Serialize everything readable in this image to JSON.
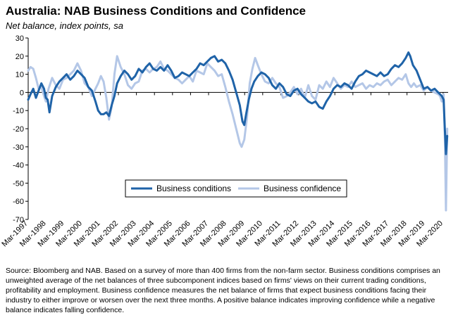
{
  "chart_data": {
    "type": "line",
    "title": "Australia: NAB Business Conditions and Confidence",
    "subtitle": "Net balance, index points, sa",
    "xlabel": "",
    "ylabel": "",
    "ylim": [
      -70,
      30
    ],
    "yticks": [
      30,
      20,
      10,
      0,
      -10,
      -20,
      -30,
      -40,
      -50,
      -60,
      -70
    ],
    "x_start": 1997.17,
    "x_end": 2020.45,
    "xtick_labels": [
      "Mar-1997",
      "Mar-1998",
      "Mar-1999",
      "Mar-2000",
      "Mar-2001",
      "Mar-2002",
      "Mar-2003",
      "Mar-2004",
      "Mar-2005",
      "Mar-2006",
      "Mar-2007",
      "Mar-2008",
      "Mar-2009",
      "Mar-2010",
      "Mar-2011",
      "Mar-2012",
      "Mar-2013",
      "Mar-2014",
      "Mar-2015",
      "Mar-2016",
      "Mar-2017",
      "Mar-2018",
      "Mar-2019",
      "Mar-2020"
    ],
    "xtick_years": [
      1997.17,
      1998.17,
      1999.17,
      2000.17,
      2001.17,
      2002.17,
      2003.17,
      2004.17,
      2005.17,
      2006.17,
      2007.17,
      2008.17,
      2009.17,
      2010.17,
      2011.17,
      2012.17,
      2013.17,
      2014.17,
      2015.17,
      2016.17,
      2017.17,
      2018.17,
      2019.17,
      2020.17
    ],
    "legend_position": "lower-center",
    "series": [
      {
        "name": "Business conditions",
        "color": "#1f63a8",
        "points": [
          [
            1997.17,
            -4
          ],
          [
            1997.3,
            -1
          ],
          [
            1997.45,
            2
          ],
          [
            1997.6,
            -3
          ],
          [
            1997.75,
            1
          ],
          [
            1997.9,
            5
          ],
          [
            1998.05,
            2
          ],
          [
            1998.15,
            -3
          ],
          [
            1998.25,
            -4
          ],
          [
            1998.35,
            -11
          ],
          [
            1998.5,
            -2
          ],
          [
            1998.7,
            3
          ],
          [
            1998.9,
            6
          ],
          [
            1999.1,
            8
          ],
          [
            1999.3,
            10
          ],
          [
            1999.5,
            7
          ],
          [
            1999.7,
            9
          ],
          [
            1999.9,
            12
          ],
          [
            2000.1,
            10
          ],
          [
            2000.3,
            8
          ],
          [
            2000.5,
            3
          ],
          [
            2000.7,
            1
          ],
          [
            2000.9,
            -5
          ],
          [
            2001.05,
            -10
          ],
          [
            2001.2,
            -12
          ],
          [
            2001.35,
            -12
          ],
          [
            2001.5,
            -11
          ],
          [
            2001.65,
            -13
          ],
          [
            2001.8,
            -7
          ],
          [
            2001.95,
            -2
          ],
          [
            2002.1,
            5
          ],
          [
            2002.3,
            9
          ],
          [
            2002.5,
            12
          ],
          [
            2002.7,
            10
          ],
          [
            2002.9,
            7
          ],
          [
            2003.1,
            9
          ],
          [
            2003.3,
            13
          ],
          [
            2003.5,
            11
          ],
          [
            2003.7,
            14
          ],
          [
            2003.9,
            16
          ],
          [
            2004.1,
            13
          ],
          [
            2004.3,
            12
          ],
          [
            2004.5,
            14
          ],
          [
            2004.7,
            12
          ],
          [
            2004.9,
            15
          ],
          [
            2005.1,
            12
          ],
          [
            2005.3,
            8
          ],
          [
            2005.5,
            9
          ],
          [
            2005.7,
            11
          ],
          [
            2005.9,
            10
          ],
          [
            2006.1,
            9
          ],
          [
            2006.3,
            11
          ],
          [
            2006.5,
            13
          ],
          [
            2006.7,
            16
          ],
          [
            2006.9,
            15
          ],
          [
            2007.1,
            17
          ],
          [
            2007.3,
            19
          ],
          [
            2007.5,
            20
          ],
          [
            2007.7,
            17
          ],
          [
            2007.9,
            18
          ],
          [
            2008.1,
            16
          ],
          [
            2008.3,
            12
          ],
          [
            2008.5,
            7
          ],
          [
            2008.7,
            0
          ],
          [
            2008.9,
            -7
          ],
          [
            2009.05,
            -16
          ],
          [
            2009.15,
            -18
          ],
          [
            2009.25,
            -12
          ],
          [
            2009.4,
            -4
          ],
          [
            2009.55,
            2
          ],
          [
            2009.7,
            6
          ],
          [
            2009.9,
            9
          ],
          [
            2010.1,
            11
          ],
          [
            2010.3,
            10
          ],
          [
            2010.5,
            8
          ],
          [
            2010.7,
            4
          ],
          [
            2010.9,
            2
          ],
          [
            2011.1,
            5
          ],
          [
            2011.3,
            3
          ],
          [
            2011.5,
            -1
          ],
          [
            2011.7,
            -2
          ],
          [
            2011.9,
            1
          ],
          [
            2012.1,
            2
          ],
          [
            2012.3,
            -1
          ],
          [
            2012.5,
            -3
          ],
          [
            2012.7,
            -5
          ],
          [
            2012.9,
            -6
          ],
          [
            2013.1,
            -5
          ],
          [
            2013.3,
            -8
          ],
          [
            2013.5,
            -9
          ],
          [
            2013.7,
            -5
          ],
          [
            2013.9,
            -2
          ],
          [
            2014.1,
            2
          ],
          [
            2014.3,
            4
          ],
          [
            2014.5,
            3
          ],
          [
            2014.7,
            5
          ],
          [
            2014.9,
            4
          ],
          [
            2015.1,
            2
          ],
          [
            2015.3,
            6
          ],
          [
            2015.5,
            9
          ],
          [
            2015.7,
            10
          ],
          [
            2015.9,
            12
          ],
          [
            2016.1,
            11
          ],
          [
            2016.3,
            10
          ],
          [
            2016.5,
            9
          ],
          [
            2016.7,
            11
          ],
          [
            2016.9,
            9
          ],
          [
            2017.1,
            10
          ],
          [
            2017.3,
            13
          ],
          [
            2017.5,
            15
          ],
          [
            2017.7,
            14
          ],
          [
            2017.9,
            16
          ],
          [
            2018.1,
            19
          ],
          [
            2018.25,
            22
          ],
          [
            2018.35,
            20
          ],
          [
            2018.5,
            15
          ],
          [
            2018.7,
            12
          ],
          [
            2018.9,
            7
          ],
          [
            2019.1,
            2
          ],
          [
            2019.3,
            3
          ],
          [
            2019.5,
            1
          ],
          [
            2019.7,
            2
          ],
          [
            2019.9,
            0
          ],
          [
            2020.0,
            -1
          ],
          [
            2020.1,
            -2
          ],
          [
            2020.2,
            -4
          ],
          [
            2020.27,
            -21
          ],
          [
            2020.33,
            -34
          ],
          [
            2020.4,
            -24
          ]
        ]
      },
      {
        "name": "Business confidence",
        "color": "#b4c7e7",
        "points": [
          [
            1997.17,
            12
          ],
          [
            1997.3,
            14
          ],
          [
            1997.45,
            13
          ],
          [
            1997.6,
            8
          ],
          [
            1997.75,
            2
          ],
          [
            1997.9,
            3
          ],
          [
            1998.05,
            -2
          ],
          [
            1998.15,
            -5
          ],
          [
            1998.3,
            2
          ],
          [
            1998.5,
            8
          ],
          [
            1998.7,
            4
          ],
          [
            1998.9,
            2
          ],
          [
            1999.1,
            7
          ],
          [
            1999.3,
            8
          ],
          [
            1999.5,
            10
          ],
          [
            1999.7,
            12
          ],
          [
            1999.9,
            16
          ],
          [
            2000.1,
            12
          ],
          [
            2000.3,
            5
          ],
          [
            2000.5,
            3
          ],
          [
            2000.7,
            -2
          ],
          [
            2000.9,
            2
          ],
          [
            2001.05,
            5
          ],
          [
            2001.2,
            9
          ],
          [
            2001.35,
            6
          ],
          [
            2001.5,
            -3
          ],
          [
            2001.65,
            -15
          ],
          [
            2001.8,
            -8
          ],
          [
            2001.95,
            10
          ],
          [
            2002.1,
            20
          ],
          [
            2002.3,
            14
          ],
          [
            2002.5,
            10
          ],
          [
            2002.7,
            4
          ],
          [
            2002.9,
            2
          ],
          [
            2003.1,
            5
          ],
          [
            2003.3,
            6
          ],
          [
            2003.5,
            12
          ],
          [
            2003.7,
            13
          ],
          [
            2003.9,
            11
          ],
          [
            2004.1,
            13
          ],
          [
            2004.3,
            14
          ],
          [
            2004.5,
            17
          ],
          [
            2004.7,
            13
          ],
          [
            2004.9,
            12
          ],
          [
            2005.1,
            10
          ],
          [
            2005.3,
            8
          ],
          [
            2005.5,
            7
          ],
          [
            2005.7,
            5
          ],
          [
            2005.9,
            7
          ],
          [
            2006.1,
            9
          ],
          [
            2006.3,
            6
          ],
          [
            2006.5,
            12
          ],
          [
            2006.7,
            11
          ],
          [
            2006.9,
            10
          ],
          [
            2007.1,
            16
          ],
          [
            2007.3,
            14
          ],
          [
            2007.5,
            12
          ],
          [
            2007.7,
            9
          ],
          [
            2007.9,
            10
          ],
          [
            2008.1,
            3
          ],
          [
            2008.3,
            -5
          ],
          [
            2008.5,
            -12
          ],
          [
            2008.7,
            -20
          ],
          [
            2008.9,
            -28
          ],
          [
            2009.0,
            -30
          ],
          [
            2009.15,
            -26
          ],
          [
            2009.3,
            -14
          ],
          [
            2009.45,
            5
          ],
          [
            2009.6,
            13
          ],
          [
            2009.75,
            19
          ],
          [
            2009.9,
            15
          ],
          [
            2010.1,
            10
          ],
          [
            2010.3,
            6
          ],
          [
            2010.5,
            5
          ],
          [
            2010.7,
            8
          ],
          [
            2010.9,
            5
          ],
          [
            2011.1,
            3
          ],
          [
            2011.3,
            -3
          ],
          [
            2011.5,
            -2
          ],
          [
            2011.7,
            0
          ],
          [
            2011.9,
            3
          ],
          [
            2012.1,
            -1
          ],
          [
            2012.3,
            2
          ],
          [
            2012.5,
            -3
          ],
          [
            2012.7,
            4
          ],
          [
            2012.9,
            -2
          ],
          [
            2013.1,
            -4
          ],
          [
            2013.3,
            4
          ],
          [
            2013.5,
            2
          ],
          [
            2013.7,
            6
          ],
          [
            2013.9,
            3
          ],
          [
            2014.1,
            8
          ],
          [
            2014.3,
            5
          ],
          [
            2014.5,
            2
          ],
          [
            2014.7,
            4
          ],
          [
            2014.9,
            3
          ],
          [
            2015.1,
            6
          ],
          [
            2015.3,
            3
          ],
          [
            2015.5,
            4
          ],
          [
            2015.7,
            5
          ],
          [
            2015.9,
            2
          ],
          [
            2016.1,
            4
          ],
          [
            2016.3,
            3
          ],
          [
            2016.5,
            5
          ],
          [
            2016.7,
            4
          ],
          [
            2016.9,
            6
          ],
          [
            2017.1,
            7
          ],
          [
            2017.3,
            4
          ],
          [
            2017.5,
            6
          ],
          [
            2017.7,
            8
          ],
          [
            2017.9,
            7
          ],
          [
            2018.1,
            10
          ],
          [
            2018.25,
            5
          ],
          [
            2018.4,
            3
          ],
          [
            2018.55,
            5
          ],
          [
            2018.7,
            3
          ],
          [
            2018.9,
            4
          ],
          [
            2019.1,
            1
          ],
          [
            2019.3,
            3
          ],
          [
            2019.5,
            1
          ],
          [
            2019.7,
            0
          ],
          [
            2019.9,
            -1
          ],
          [
            2020.0,
            -2
          ],
          [
            2020.1,
            -5
          ],
          [
            2020.2,
            -1
          ],
          [
            2020.27,
            -25
          ],
          [
            2020.33,
            -65
          ],
          [
            2020.4,
            -20
          ]
        ]
      }
    ]
  },
  "source_note": "Source: Bloomberg and NAB. Based on a survey of more than 400 firms from the non-farm sector. Business conditions comprises an unweighted average of the net balances of three subcomponent indices based on firms' views on their current trading conditions, profitability and employment. Business confidence measures the net balance of firms that expect business conditions facing their industry to either improve or worsen over the next three months. A positive balance indicates improving confidence while a negative balance indicates falling confidence."
}
